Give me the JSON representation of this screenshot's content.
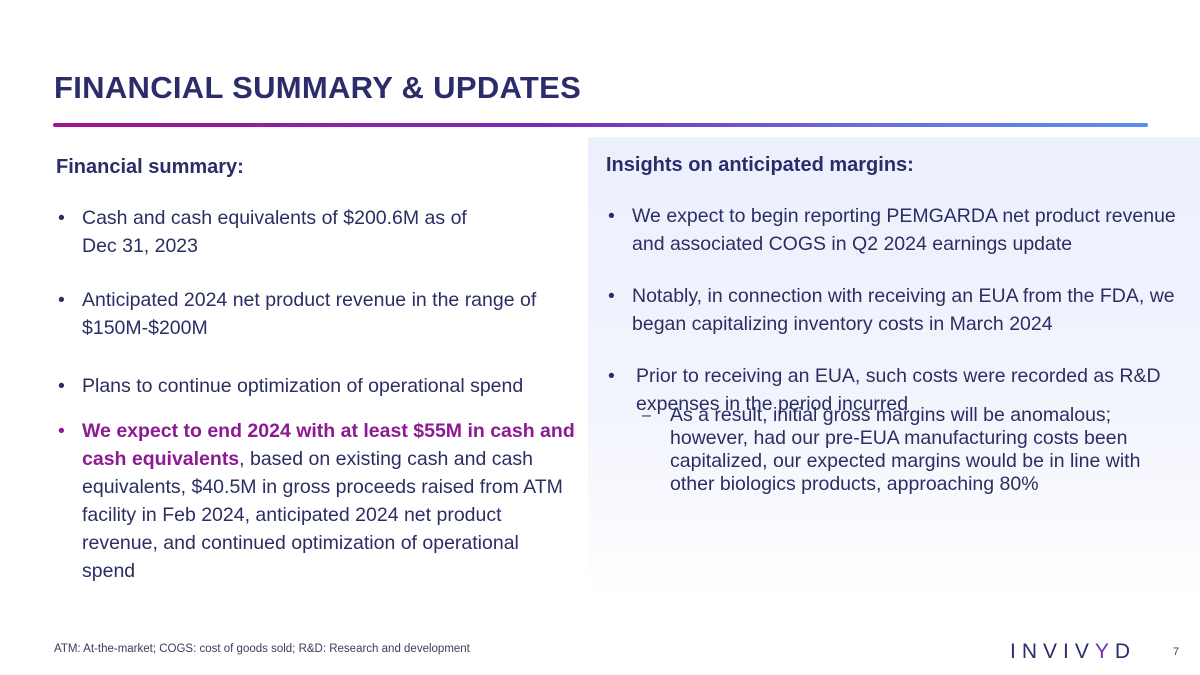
{
  "header": {
    "title": "FINANCIAL SUMMARY & UPDATES"
  },
  "left": {
    "heading": "Financial summary:",
    "bullets": [
      {
        "text": "Cash and cash equivalents of $200.6M as of",
        "text2": "Dec 31, 2023"
      },
      {
        "text": "Anticipated 2024 net product revenue in the range of $150M-$200M"
      },
      {
        "text": "Plans to continue optimization of operational spend"
      },
      {
        "highlight": "We expect to end 2024 with at least $55M in cash and cash equivalents",
        "rest": ", based on existing cash and cash equivalents, $40.5M in gross proceeds raised from ATM facility in Feb 2024, anticipated 2024 net product revenue, and continued optimization of operational spend"
      }
    ]
  },
  "right": {
    "heading": "Insights on anticipated margins:",
    "bullets": [
      {
        "text": "We expect to begin reporting PEMGARDA net product revenue and associated COGS in Q2 2024 earnings update"
      },
      {
        "text": "Notably, in connection with receiving an EUA from the FDA, we began capitalizing inventory costs in March 2024"
      },
      {
        "text": "Prior to receiving an EUA, such costs were recorded as R&D expenses in the period incurred"
      }
    ],
    "sub_bullets": [
      {
        "text": "As a result, initial gross margins will be anomalous; however, had our pre-EUA manufacturing costs been capitalized, our expected margins would be in line with other biologics products, approaching 80%"
      }
    ]
  },
  "footer": {
    "footnote": "ATM: At-the-market; COGS: cost of goods sold; R&D: Research and development",
    "logo_text_a": "INVIV",
    "logo_text_y": "Y",
    "logo_text_b": "D",
    "page_number": "7"
  },
  "colors": {
    "title": "#2b2d6b",
    "highlight": "#8e1a93",
    "accent_gradient_start": "#a3148f",
    "accent_gradient_end": "#5b8ef0"
  }
}
